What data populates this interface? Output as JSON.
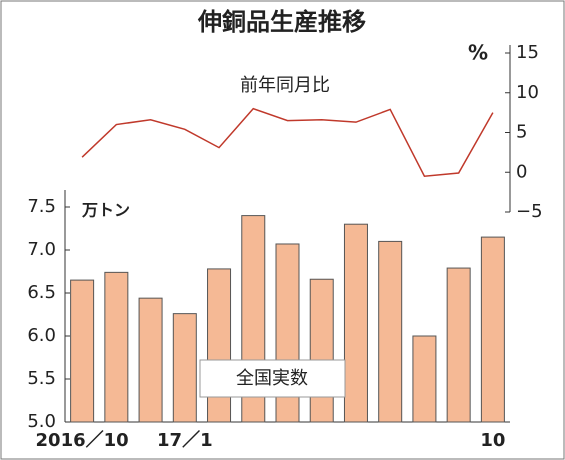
{
  "chart_data": {
    "type": "combo",
    "title": "伸銅品生産推移",
    "categories": [
      "2016／10",
      null,
      null,
      "17／1",
      null,
      null,
      null,
      null,
      null,
      null,
      null,
      null,
      "10"
    ],
    "series": [
      {
        "name": "全国実数",
        "type": "bar",
        "color": "#f5b995",
        "values": [
          6.65,
          6.74,
          6.44,
          6.26,
          6.78,
          7.4,
          7.07,
          6.66,
          7.3,
          7.1,
          6.0,
          6.79,
          7.15
        ]
      },
      {
        "name": "前年同月比",
        "type": "line",
        "axis": "y2",
        "color": "#c0392b",
        "values": [
          1.9,
          6.0,
          6.6,
          5.4,
          3.1,
          8.0,
          6.5,
          6.6,
          6.3,
          7.9,
          -0.5,
          -0.1,
          7.5
        ]
      }
    ],
    "y_unit": "万トン",
    "y2_unit": "%",
    "ylim": [
      5.0,
      7.5
    ],
    "yticks": [
      {
        "value": 5,
        "label": "5.0"
      },
      {
        "value": 5.5,
        "label": "5.5"
      },
      {
        "value": 6,
        "label": "6.0"
      },
      {
        "value": 6.5,
        "label": "6.5"
      },
      {
        "value": 7,
        "label": "7.0"
      },
      {
        "value": 7.5,
        "label": "7.5"
      }
    ],
    "y2lim": [
      -5,
      15
    ],
    "y2ticks": [
      {
        "value": -5,
        "label": "−5"
      },
      0,
      5,
      10,
      15
    ]
  }
}
